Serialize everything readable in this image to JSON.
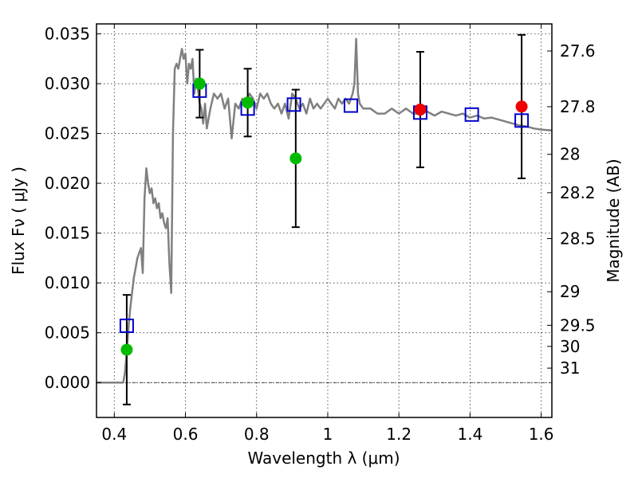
{
  "chart_data": {
    "type": "scatter",
    "title": "",
    "xlabel": "Wavelength  λ (μm)",
    "ylabel": "Flux  Fν  ( μJy )",
    "y2label": "Magnitude (AB)",
    "xlim": [
      0.35,
      1.63
    ],
    "ylim": [
      -0.0035,
      0.036
    ],
    "grid": true,
    "x_ticks": [
      {
        "value": 0.4,
        "label": "0.4"
      },
      {
        "value": 0.6,
        "label": "0.6"
      },
      {
        "value": 0.8,
        "label": "0.8"
      },
      {
        "value": 1.0,
        "label": "1"
      },
      {
        "value": 1.2,
        "label": "1.2"
      },
      {
        "value": 1.4,
        "label": "1.4"
      },
      {
        "value": 1.6,
        "label": "1.6"
      }
    ],
    "y_ticks": [
      {
        "value": 0.0,
        "label": "0.000"
      },
      {
        "value": 0.005,
        "label": "0.005"
      },
      {
        "value": 0.01,
        "label": "0.010"
      },
      {
        "value": 0.015,
        "label": "0.015"
      },
      {
        "value": 0.02,
        "label": "0.020"
      },
      {
        "value": 0.025,
        "label": "0.025"
      },
      {
        "value": 0.03,
        "label": "0.030"
      },
      {
        "value": 0.035,
        "label": "0.035"
      }
    ],
    "y2_ticks": [
      {
        "flux": 0.03328,
        "label": "27.6"
      },
      {
        "flux": 0.02769,
        "label": "27.8"
      },
      {
        "flux": 0.02291,
        "label": "28"
      },
      {
        "flux": 0.01906,
        "label": "28.2"
      },
      {
        "flux": 0.01445,
        "label": "28.5"
      },
      {
        "flux": 0.00912,
        "label": "29"
      },
      {
        "flux": 0.00575,
        "label": "29.5"
      },
      {
        "flux": 0.00363,
        "label": "30"
      },
      {
        "flux": 0.00145,
        "label": "31"
      }
    ],
    "colors": {
      "model": "#808080",
      "model_points": "#0000cc",
      "green_points": "#00bb00",
      "red_points": "#ee0000",
      "errorbars": "#000000"
    },
    "series": [
      {
        "kind": "line",
        "x": [
          0.35,
          0.42,
          0.425,
          0.43,
          0.435,
          0.44,
          0.445,
          0.45,
          0.455,
          0.46,
          0.465,
          0.47,
          0.475,
          0.48,
          0.485,
          0.49,
          0.495,
          0.5,
          0.505,
          0.51,
          0.515,
          0.52,
          0.525,
          0.53,
          0.535,
          0.54,
          0.545,
          0.55,
          0.555,
          0.56,
          0.565,
          0.57,
          0.575,
          0.58,
          0.585,
          0.59,
          0.595,
          0.6,
          0.605,
          0.61,
          0.615,
          0.62,
          0.625,
          0.63,
          0.635,
          0.64,
          0.645,
          0.65,
          0.655,
          0.66,
          0.67,
          0.68,
          0.69,
          0.7,
          0.71,
          0.72,
          0.73,
          0.74,
          0.75,
          0.76,
          0.77,
          0.78,
          0.79,
          0.8,
          0.81,
          0.82,
          0.83,
          0.84,
          0.85,
          0.86,
          0.87,
          0.88,
          0.89,
          0.9,
          0.91,
          0.92,
          0.93,
          0.94,
          0.95,
          0.96,
          0.97,
          0.98,
          0.99,
          1.0,
          1.01,
          1.02,
          1.03,
          1.04,
          1.05,
          1.06,
          1.07,
          1.075,
          1.08,
          1.085,
          1.09,
          1.1,
          1.12,
          1.14,
          1.16,
          1.18,
          1.2,
          1.22,
          1.24,
          1.26,
          1.28,
          1.3,
          1.32,
          1.34,
          1.36,
          1.38,
          1.4,
          1.42,
          1.44,
          1.46,
          1.48,
          1.5,
          1.52,
          1.54,
          1.56,
          1.58,
          1.6,
          1.63
        ],
        "y": [
          0.0,
          0.0,
          0.0,
          0.001,
          0.003,
          0.0055,
          0.0075,
          0.009,
          0.0105,
          0.0115,
          0.0125,
          0.013,
          0.0135,
          0.011,
          0.0185,
          0.0215,
          0.02,
          0.019,
          0.0195,
          0.018,
          0.0185,
          0.0175,
          0.018,
          0.0165,
          0.017,
          0.016,
          0.0155,
          0.0165,
          0.012,
          0.009,
          0.025,
          0.0315,
          0.032,
          0.0315,
          0.0325,
          0.0335,
          0.0325,
          0.033,
          0.03,
          0.032,
          0.0315,
          0.0325,
          0.029,
          0.0305,
          0.0295,
          0.028,
          0.0275,
          0.026,
          0.028,
          0.0255,
          0.0275,
          0.029,
          0.0285,
          0.029,
          0.0275,
          0.0285,
          0.0245,
          0.028,
          0.0275,
          0.0285,
          0.028,
          0.029,
          0.0285,
          0.0275,
          0.029,
          0.0285,
          0.029,
          0.028,
          0.0275,
          0.028,
          0.027,
          0.028,
          0.0265,
          0.029,
          0.0285,
          0.0275,
          0.028,
          0.027,
          0.0285,
          0.0275,
          0.028,
          0.0275,
          0.028,
          0.0285,
          0.028,
          0.0275,
          0.0285,
          0.028,
          0.0285,
          0.028,
          0.029,
          0.03,
          0.0345,
          0.029,
          0.028,
          0.0275,
          0.0275,
          0.027,
          0.027,
          0.0275,
          0.027,
          0.0275,
          0.027,
          0.027,
          0.0272,
          0.0268,
          0.0272,
          0.027,
          0.0268,
          0.027,
          0.0266,
          0.0268,
          0.0265,
          0.0266,
          0.0264,
          0.0262,
          0.026,
          0.0258,
          0.0257,
          0.0255,
          0.0254,
          0.0253
        ]
      },
      {
        "kind": "open_square",
        "x": [
          0.435,
          0.64,
          0.775,
          0.905,
          1.065,
          1.26,
          1.405,
          1.545
        ],
        "y": [
          0.0057,
          0.0293,
          0.0275,
          0.0279,
          0.0278,
          0.0271,
          0.0269,
          0.0263
        ]
      },
      {
        "kind": "green_circle",
        "x": [
          0.435,
          0.64,
          0.775,
          0.91
        ],
        "y": [
          0.0033,
          0.03,
          0.0281,
          0.0225
        ],
        "err": [
          0.0055,
          0.0034,
          0.0034,
          0.0069
        ]
      },
      {
        "kind": "red_circle",
        "x": [
          1.26,
          1.545
        ],
        "y": [
          0.0274,
          0.0277
        ],
        "err": [
          0.0058,
          0.0072
        ]
      }
    ]
  }
}
